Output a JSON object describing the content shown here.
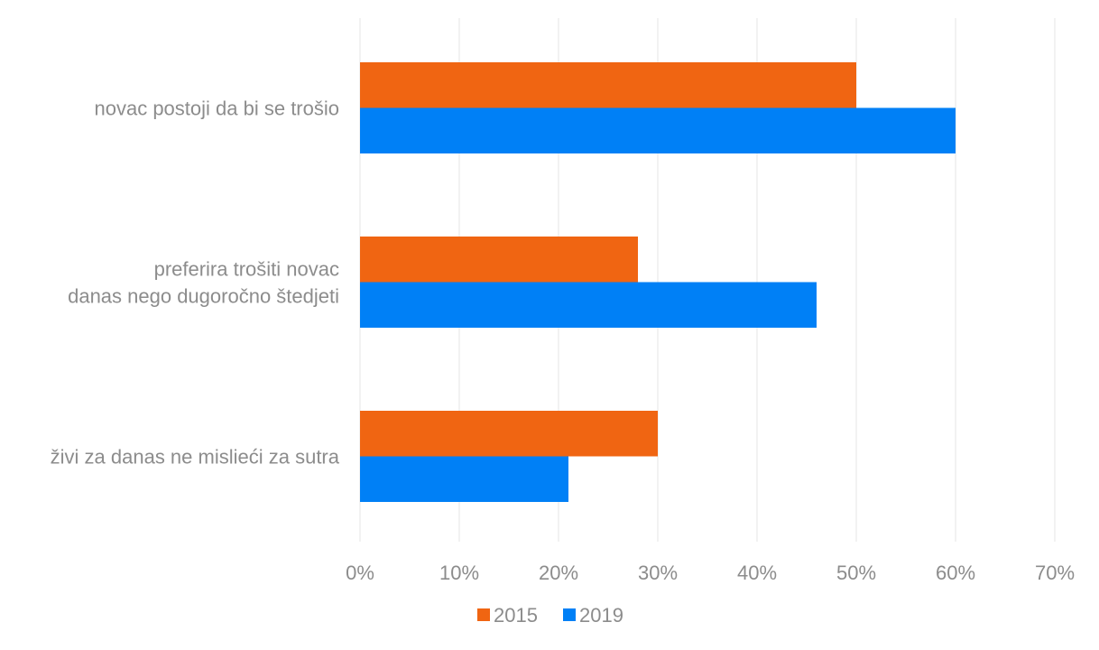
{
  "chart_data": {
    "type": "bar",
    "orientation": "horizontal",
    "categories": [
      [
        "novac postoji da bi se trošio"
      ],
      [
        "preferira trošiti novac",
        "danas nego dugoročno štedjeti"
      ],
      [
        "živi za danas ne mislieći za sutra"
      ]
    ],
    "series": [
      {
        "name": "2015",
        "color": "#f06512",
        "values": [
          50,
          28,
          30
        ]
      },
      {
        "name": "2019",
        "color": "#0080f6",
        "values": [
          60,
          46,
          21
        ]
      }
    ],
    "xlim": [
      0,
      70
    ],
    "xticks": [
      0,
      10,
      20,
      30,
      40,
      50,
      60,
      70
    ],
    "xtick_labels": [
      "0%",
      "10%",
      "20%",
      "30%",
      "40%",
      "50%",
      "60%",
      "70%"
    ],
    "title": "",
    "xlabel": "",
    "ylabel": "",
    "grid": true,
    "legend_position": "bottom"
  }
}
